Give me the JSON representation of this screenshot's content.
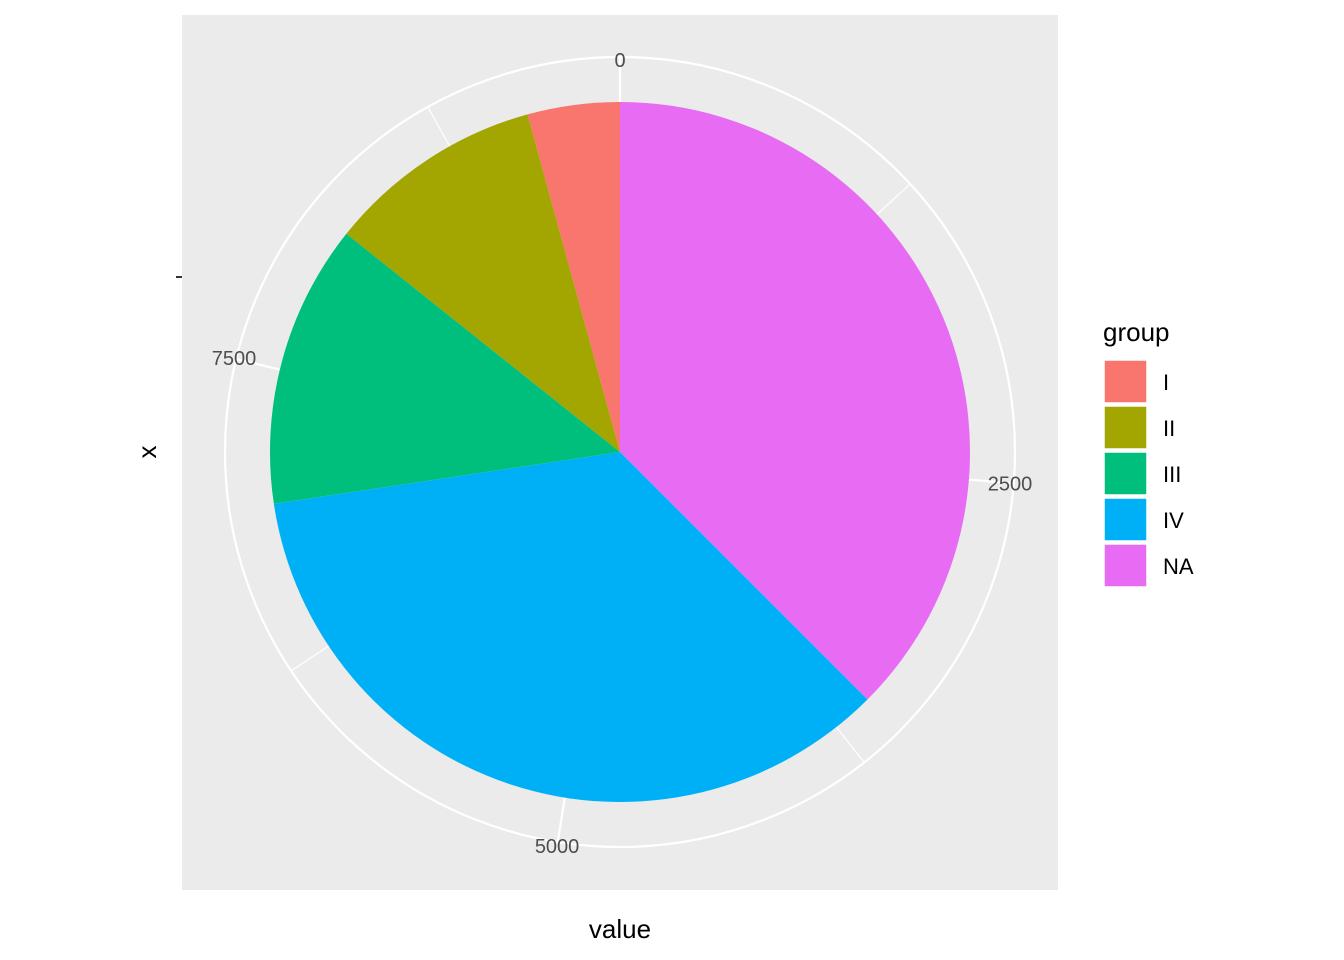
{
  "chart_data": {
    "type": "pie",
    "xlabel": "value",
    "ylabel": "x",
    "theta_ticks": [
      0,
      2500,
      5000,
      7500
    ],
    "theta_tick_labels": [
      "0",
      "2500",
      "5000",
      "7500"
    ],
    "total": 9520,
    "legend": {
      "title": "group",
      "position": "right"
    },
    "categories": [
      "I",
      "II",
      "III",
      "IV",
      "NA"
    ],
    "values": [
      405,
      955,
      1245,
      3345,
      3570
    ],
    "colors": [
      "#F8766D",
      "#A3A500",
      "#00BF7D",
      "#00B0F6",
      "#E76BF3"
    ],
    "panel_background": "#EBEBEB",
    "grid": true
  }
}
